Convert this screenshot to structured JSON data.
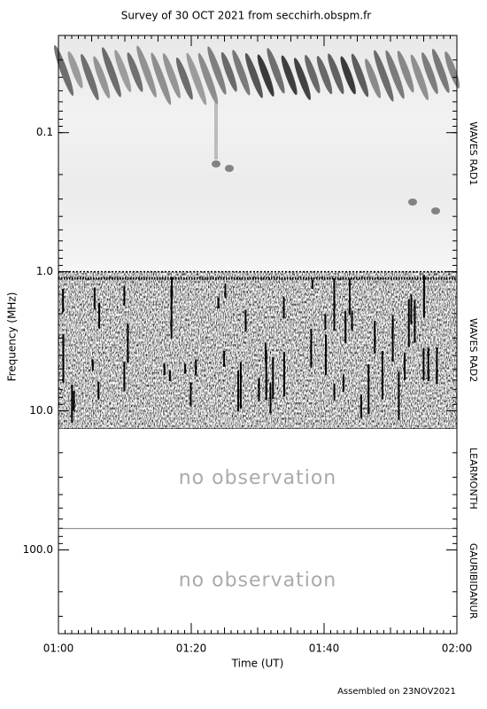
{
  "chart_data": {
    "type": "spectrogram",
    "title": "Survey of 30 OCT 2021 from secchirh.obspm.fr",
    "x_label": "Time (UT)",
    "y_label": "Frequency (MHz)",
    "xlim": [
      0,
      60
    ],
    "xticks": [
      {
        "value": 0,
        "label": "01:00"
      },
      {
        "value": 20,
        "label": "01:20"
      },
      {
        "value": 40,
        "label": "01:40"
      },
      {
        "value": 60,
        "label": "02:00"
      }
    ],
    "ylim": [
      0.02,
      400
    ],
    "log_scale": true,
    "y_inverted": true,
    "yticks": [
      0.1,
      {
        "value": 1,
        "label": "1.0"
      },
      {
        "value": 10,
        "label": "10.0"
      },
      {
        "value": 100,
        "label": "100.0"
      }
    ],
    "panels": [
      {
        "name": "WAVES RAD1",
        "range": [
          0.02,
          1
        ]
      },
      {
        "name": "WAVES RAD2",
        "range": [
          1,
          13.4
        ]
      },
      {
        "name": "LEARMONTH",
        "range": [
          13.4,
          70
        ],
        "note": "no observation"
      },
      {
        "name": "GAURIBIDANUR",
        "range": [
          70,
          400
        ],
        "note": "no observation"
      }
    ],
    "footer": "Assembled on 23NOV2021"
  }
}
